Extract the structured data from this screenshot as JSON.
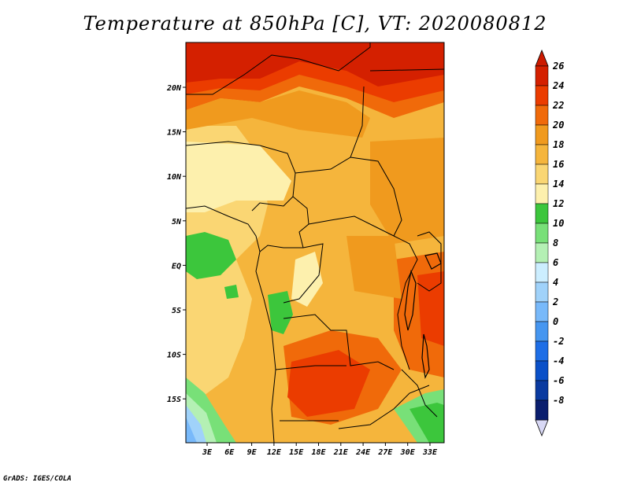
{
  "title": "Temperature at 850hPa [C], VT: 2020080812",
  "credit": "GrADS: IGES/COLA",
  "map": {
    "region": "Central Africa",
    "lon_ticks": [
      "3E",
      "6E",
      "9E",
      "12E",
      "15E",
      "18E",
      "21E",
      "24E",
      "27E",
      "30E",
      "33E"
    ],
    "lat_ticks": [
      "20N",
      "15N",
      "10N",
      "5N",
      "EQ",
      "5S",
      "10S",
      "15S"
    ]
  },
  "colorbar": {
    "labels": [
      "26",
      "24",
      "22",
      "20",
      "18",
      "16",
      "14",
      "12",
      "10",
      "8",
      "6",
      "4",
      "2",
      "0",
      "-2",
      "-4",
      "-6",
      "-8"
    ],
    "colors": [
      "#d42000",
      "#eb3c00",
      "#f06a0a",
      "#f09a1e",
      "#f5b53c",
      "#fad673",
      "#fdf0ad",
      "#3cc63c",
      "#78e078",
      "#b4f0b4",
      "#cceeff",
      "#a0d2fa",
      "#78b9fa",
      "#4696f0",
      "#1e6ee6",
      "#0a50c8",
      "#0a3aa0",
      "#0a1e6e"
    ],
    "top_color": "#cc1a00",
    "bottom_color": "#d8d8f5"
  }
}
